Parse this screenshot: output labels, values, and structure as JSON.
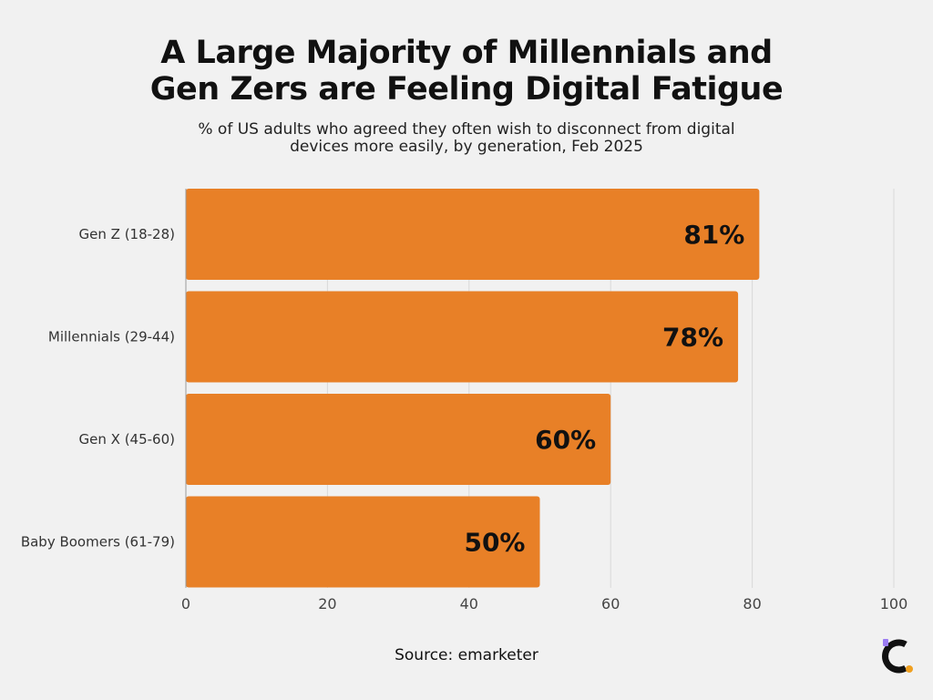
{
  "title_lines": [
    "A Large Majority of Millennials and",
    "Gen Zers are Feeling Digital Fatigue"
  ],
  "subtitle_lines": [
    "% of US adults who agreed they often wish to disconnect from digital",
    "devices more easily, by generation, Feb 2025"
  ],
  "source": "Source: emarketer",
  "colors": {
    "bar": "#e88027",
    "background": "#f1f1f1",
    "grid": "#d9d9d9",
    "text": "#111111",
    "logo_accent": "#9b7cf2",
    "logo_dot": "#f0a020"
  },
  "logo_icon": "c-letter-logo",
  "chart_data": {
    "type": "bar",
    "orientation": "horizontal",
    "title": "A Large Majority of Millennials and Gen Zers are Feeling Digital Fatigue",
    "subtitle": "% of US adults who agreed they often wish to disconnect from digital devices more easily, by generation, Feb 2025",
    "categories": [
      "Gen Z (18-28)",
      "Millennials (29-44)",
      "Gen X (45-60)",
      "Baby Boomers (61-79)"
    ],
    "values": [
      81,
      78,
      60,
      50
    ],
    "data_labels": [
      "81%",
      "78%",
      "60%",
      "50%"
    ],
    "xlim": [
      0,
      100
    ],
    "xticks": [
      0,
      20,
      40,
      60,
      80,
      100
    ],
    "grid": true,
    "legend": "none",
    "xlabel": "",
    "ylabel": ""
  }
}
